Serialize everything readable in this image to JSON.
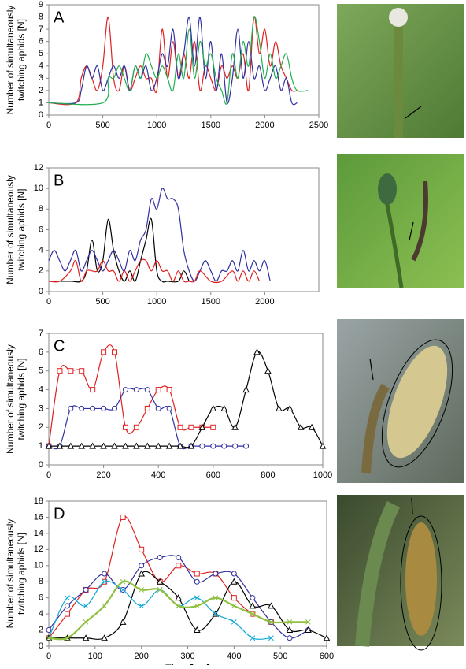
{
  "chart_data": [
    {
      "type": "line",
      "label": "A",
      "ylabel": [
        "Number of simultaneously",
        "twitching aphids [N]"
      ],
      "xlim": [
        0,
        2500
      ],
      "xticks": [
        0,
        500,
        1000,
        1500,
        2000,
        2500
      ],
      "ylim": [
        0,
        9
      ],
      "yticks": [
        0,
        1,
        2,
        3,
        4,
        5,
        6,
        7,
        8,
        9
      ],
      "series": [
        {
          "color": "#e02020",
          "x": [
            0,
            250,
            300,
            350,
            400,
            450,
            500,
            550,
            600,
            650,
            700,
            750,
            800,
            850,
            900,
            950,
            1000,
            1050,
            1100,
            1150,
            1200,
            1250,
            1300,
            1350,
            1400,
            1450,
            1500,
            1550,
            1600,
            1650,
            1700,
            1750,
            1800,
            1850,
            1900,
            1950,
            2000,
            2050,
            2100,
            2150,
            2200,
            2250,
            2300
          ],
          "values": [
            1,
            1,
            3,
            4,
            3,
            2,
            4,
            8,
            3,
            2,
            4,
            2,
            3,
            4,
            3,
            3,
            2,
            7,
            3,
            6,
            3,
            5,
            3,
            6,
            2,
            4,
            3,
            2,
            4,
            3,
            4,
            3,
            5,
            2,
            8,
            5,
            7,
            4,
            6,
            4,
            3,
            2,
            2
          ]
        },
        {
          "color": "#3030a0",
          "x": [
            0,
            250,
            300,
            350,
            400,
            450,
            500,
            550,
            600,
            650,
            700,
            750,
            800,
            850,
            900,
            950,
            1000,
            1050,
            1100,
            1150,
            1200,
            1250,
            1300,
            1350,
            1400,
            1450,
            1500,
            1550,
            1600,
            1650,
            1700,
            1750,
            1800,
            1850,
            1900,
            1950,
            2000,
            2050,
            2100,
            2150,
            2200,
            2250,
            2300
          ],
          "values": [
            1,
            1,
            2,
            4,
            3,
            4,
            2,
            3,
            4,
            3,
            4,
            2,
            4,
            3,
            4,
            2,
            3,
            5,
            4,
            7,
            3,
            5,
            8,
            4,
            8,
            3,
            6,
            2,
            5,
            1,
            3,
            7,
            3,
            6,
            3,
            4,
            2,
            3,
            4,
            2,
            3,
            1,
            1
          ]
        },
        {
          "color": "#20b050",
          "x": [
            0,
            500,
            550,
            600,
            650,
            700,
            750,
            800,
            850,
            900,
            950,
            1000,
            1050,
            1100,
            1150,
            1200,
            1250,
            1300,
            1350,
            1400,
            1450,
            1500,
            1550,
            1600,
            1650,
            1700,
            1750,
            1800,
            1850,
            1900,
            1950,
            2000,
            2050,
            2100,
            2150,
            2200,
            2250,
            2300,
            2400
          ],
          "values": [
            1,
            1,
            3,
            3,
            4,
            3,
            2,
            4,
            3,
            5,
            4,
            3,
            4,
            3,
            2,
            5,
            3,
            7,
            3,
            6,
            4,
            5,
            3,
            2,
            1,
            5,
            3,
            6,
            4,
            8,
            6,
            3,
            5,
            3,
            4,
            5,
            3,
            2,
            2
          ]
        }
      ]
    },
    {
      "type": "line",
      "label": "B",
      "ylabel": [
        "Number of simultaneously",
        "twitching aphids [N]"
      ],
      "xlim": [
        0,
        2500
      ],
      "xticks": [
        0,
        500,
        1000,
        1500,
        2000
      ],
      "ylim": [
        0,
        12
      ],
      "yticks": [
        0,
        2,
        4,
        6,
        8,
        10,
        12
      ],
      "series": [
        {
          "color": "#000000",
          "x": [
            0,
            200,
            300,
            350,
            400,
            450,
            500,
            550,
            600,
            650,
            700,
            750,
            800,
            850,
            900,
            950,
            1000,
            1050,
            1100,
            1200,
            1250,
            1300
          ],
          "values": [
            1,
            1,
            1,
            2,
            5,
            2,
            3,
            7,
            4,
            2,
            1,
            2,
            1,
            3,
            5,
            7,
            2,
            1,
            1,
            1,
            2,
            1
          ]
        },
        {
          "color": "#3030a0",
          "x": [
            0,
            50,
            100,
            150,
            200,
            250,
            300,
            350,
            400,
            450,
            500,
            550,
            600,
            650,
            700,
            750,
            800,
            850,
            900,
            950,
            1000,
            1050,
            1100,
            1150,
            1200,
            1250,
            1300,
            1350,
            1400,
            1450,
            1500,
            1550,
            1600,
            1650,
            1700,
            1750,
            1800,
            1850,
            1900,
            1950,
            2000,
            2050
          ],
          "values": [
            3,
            4,
            3,
            2,
            3,
            4,
            2,
            3,
            4,
            3,
            2,
            3,
            4,
            3,
            2,
            4,
            3,
            5,
            6,
            9,
            8,
            10,
            9,
            9,
            8,
            4,
            2,
            1,
            2,
            3,
            2,
            1,
            2,
            2,
            3,
            2,
            4,
            2,
            3,
            2,
            3,
            1
          ]
        },
        {
          "color": "#e02020",
          "x": [
            0,
            100,
            200,
            250,
            300,
            350,
            400,
            450,
            500,
            550,
            600,
            650,
            700,
            750,
            800,
            850,
            900,
            950,
            1000,
            1050,
            1100,
            1150,
            1200,
            1250,
            1300,
            1350,
            1400,
            1500,
            1600,
            1700,
            1750,
            1800,
            1850,
            1900,
            1950
          ],
          "values": [
            1,
            1,
            2,
            3,
            1,
            2,
            2,
            2,
            3,
            2,
            2,
            1,
            2,
            1,
            2,
            3,
            3,
            2,
            3,
            2,
            2,
            1,
            2,
            1,
            1,
            1,
            2,
            1,
            1,
            2,
            1,
            2,
            1,
            2,
            1
          ]
        }
      ]
    },
    {
      "type": "line",
      "label": "C",
      "ylabel": [
        "Number of simultaneously",
        "twitching aphids [N]"
      ],
      "xlim": [
        0,
        1000
      ],
      "xticks": [
        0,
        200,
        400,
        600,
        800,
        1000
      ],
      "ylim": [
        0,
        7
      ],
      "yticks": [
        0,
        1,
        2,
        3,
        4,
        5,
        6,
        7
      ],
      "series": [
        {
          "color": "#e02020",
          "marker": "square",
          "x": [
            0,
            40,
            80,
            120,
            160,
            200,
            240,
            280,
            320,
            360,
            400,
            440,
            480,
            520,
            560,
            600
          ],
          "values": [
            1,
            5,
            5,
            5,
            4,
            6,
            6,
            2,
            2,
            3,
            4,
            4,
            2,
            2,
            2,
            2
          ]
        },
        {
          "color": "#3030a0",
          "marker": "circle",
          "x": [
            0,
            40,
            80,
            120,
            160,
            200,
            240,
            280,
            320,
            360,
            400,
            440,
            480,
            520,
            560,
            600,
            640,
            680,
            720
          ],
          "values": [
            1,
            1,
            3,
            3,
            3,
            3,
            3,
            4,
            4,
            4,
            3,
            3,
            1,
            1,
            1,
            1,
            1,
            1,
            1
          ]
        },
        {
          "color": "#000000",
          "marker": "triangle",
          "x": [
            0,
            40,
            80,
            120,
            160,
            200,
            240,
            280,
            320,
            360,
            400,
            440,
            480,
            520,
            560,
            600,
            640,
            680,
            720,
            760,
            800,
            840,
            880,
            920,
            960,
            1000
          ],
          "values": [
            1,
            1,
            1,
            1,
            1,
            1,
            1,
            1,
            1,
            1,
            1,
            1,
            1,
            1,
            2,
            3,
            3,
            2,
            4,
            6,
            5,
            3,
            3,
            2,
            2,
            1
          ]
        }
      ]
    },
    {
      "type": "line",
      "label": "D",
      "ylabel": [
        "Number of simultaneously",
        "twitching aphids [N]"
      ],
      "xlabel": "Time [ms]",
      "xlim": [
        0,
        600
      ],
      "xticks": [
        0,
        100,
        200,
        300,
        400,
        500,
        600
      ],
      "ylim": [
        0,
        18
      ],
      "yticks": [
        0,
        2,
        4,
        6,
        8,
        10,
        12,
        14,
        16,
        18
      ],
      "series": [
        {
          "color": "#e02020",
          "marker": "square",
          "x": [
            0,
            40,
            80,
            120,
            160,
            200,
            240,
            280,
            320,
            360,
            400,
            440,
            480
          ],
          "values": [
            1,
            4,
            7,
            8,
            16,
            12,
            8,
            10,
            9,
            9,
            6,
            4,
            3
          ]
        },
        {
          "color": "#3030a0",
          "marker": "circle",
          "x": [
            0,
            40,
            80,
            120,
            160,
            200,
            240,
            280,
            320,
            360,
            400,
            440,
            480,
            520,
            560
          ],
          "values": [
            2,
            5,
            7,
            9,
            7,
            10,
            11,
            11,
            8,
            9,
            9,
            6,
            3,
            1,
            2
          ]
        },
        {
          "color": "#000000",
          "marker": "triangle",
          "x": [
            0,
            40,
            80,
            120,
            160,
            200,
            240,
            280,
            320,
            360,
            400,
            440,
            480,
            520,
            560,
            600
          ],
          "values": [
            1,
            1,
            1,
            1,
            3,
            9,
            8,
            6,
            2,
            4,
            8,
            5,
            5,
            2,
            2,
            1
          ]
        },
        {
          "color": "#10a8d8",
          "marker": "cross",
          "x": [
            0,
            40,
            80,
            120,
            160,
            200,
            240,
            280,
            320,
            360,
            400,
            440,
            480
          ],
          "values": [
            1,
            6,
            5,
            8,
            7,
            5,
            7,
            5,
            6,
            4,
            3,
            1,
            1
          ]
        },
        {
          "color": "#90c040",
          "marker": "cross",
          "width": 2.2,
          "x": [
            0,
            40,
            80,
            120,
            160,
            200,
            240,
            280,
            320,
            360,
            400,
            440,
            480,
            520,
            560
          ],
          "values": [
            1,
            1,
            3,
            5,
            8,
            7,
            7,
            5,
            5,
            6,
            5,
            4,
            3,
            3,
            3
          ]
        }
      ]
    }
  ]
}
